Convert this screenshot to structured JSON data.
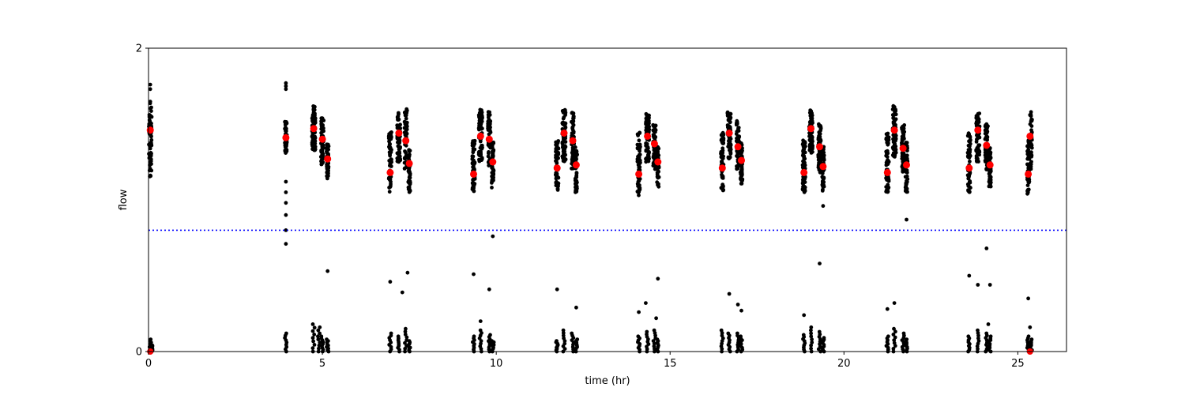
{
  "chart_data": {
    "type": "scatter",
    "xlabel": "time (hr)",
    "ylabel": "flow",
    "xlim": [
      0,
      26.4
    ],
    "ylim": [
      0,
      2
    ],
    "xticks": [
      0,
      5,
      10,
      15,
      20,
      25
    ],
    "yticks": [
      0,
      2
    ],
    "grid": false,
    "threshold_line": {
      "y": 0.8,
      "color": "#0000ff",
      "style": "dotted"
    },
    "colors": {
      "raw": "#000000",
      "mean": "#ff0000",
      "threshold": "#0000ff"
    },
    "mean_points": {
      "x": [
        0.05,
        3.95,
        4.75,
        5.0,
        5.15,
        6.95,
        7.2,
        7.4,
        7.5,
        9.35,
        9.55,
        9.8,
        9.9,
        11.75,
        11.95,
        12.2,
        12.3,
        14.1,
        14.35,
        14.55,
        14.65,
        16.5,
        16.7,
        16.95,
        17.05,
        18.85,
        19.05,
        19.3,
        19.4,
        21.25,
        21.45,
        21.7,
        21.8,
        23.6,
        23.85,
        24.1,
        24.2,
        25.3,
        25.35
      ],
      "y": [
        1.46,
        1.41,
        1.47,
        1.4,
        1.27,
        1.18,
        1.44,
        1.39,
        1.24,
        1.17,
        1.42,
        1.4,
        1.25,
        1.21,
        1.44,
        1.39,
        1.23,
        1.17,
        1.42,
        1.37,
        1.25,
        1.21,
        1.44,
        1.35,
        1.26,
        1.18,
        1.47,
        1.35,
        1.22,
        1.18,
        1.46,
        1.34,
        1.23,
        1.21,
        1.46,
        1.36,
        1.23,
        1.17,
        1.42
      ]
    },
    "raw_clusters": [
      {
        "x": 0.05,
        "lo": 1.15,
        "hi": 1.65,
        "width": 0.08,
        "n": 70
      },
      {
        "x": 3.95,
        "lo": 1.3,
        "hi": 1.52,
        "width": 0.06,
        "n": 40
      },
      {
        "x": 4.75,
        "lo": 1.32,
        "hi": 1.62,
        "width": 0.1,
        "n": 70
      },
      {
        "x": 5.0,
        "lo": 1.23,
        "hi": 1.55,
        "width": 0.08,
        "n": 60
      },
      {
        "x": 5.15,
        "lo": 1.14,
        "hi": 1.38,
        "width": 0.06,
        "n": 50
      },
      {
        "x": 6.95,
        "lo": 1.05,
        "hi": 1.45,
        "width": 0.08,
        "n": 60
      },
      {
        "x": 7.2,
        "lo": 1.25,
        "hi": 1.58,
        "width": 0.1,
        "n": 70
      },
      {
        "x": 7.4,
        "lo": 1.2,
        "hi": 1.6,
        "width": 0.08,
        "n": 60
      },
      {
        "x": 7.5,
        "lo": 1.05,
        "hi": 1.35,
        "width": 0.06,
        "n": 50
      },
      {
        "x": 9.35,
        "lo": 1.05,
        "hi": 1.4,
        "width": 0.08,
        "n": 60
      },
      {
        "x": 9.55,
        "lo": 1.25,
        "hi": 1.6,
        "width": 0.1,
        "n": 70
      },
      {
        "x": 9.8,
        "lo": 1.22,
        "hi": 1.58,
        "width": 0.08,
        "n": 60
      },
      {
        "x": 9.9,
        "lo": 1.08,
        "hi": 1.38,
        "width": 0.06,
        "n": 50
      },
      {
        "x": 11.75,
        "lo": 1.05,
        "hi": 1.4,
        "width": 0.08,
        "n": 60
      },
      {
        "x": 11.95,
        "lo": 1.25,
        "hi": 1.6,
        "width": 0.1,
        "n": 70
      },
      {
        "x": 12.2,
        "lo": 1.2,
        "hi": 1.58,
        "width": 0.08,
        "n": 60
      },
      {
        "x": 12.3,
        "lo": 1.05,
        "hi": 1.35,
        "width": 0.06,
        "n": 50
      },
      {
        "x": 14.1,
        "lo": 1.03,
        "hi": 1.45,
        "width": 0.08,
        "n": 60
      },
      {
        "x": 14.35,
        "lo": 1.25,
        "hi": 1.57,
        "width": 0.1,
        "n": 70
      },
      {
        "x": 14.55,
        "lo": 1.2,
        "hi": 1.5,
        "width": 0.08,
        "n": 60
      },
      {
        "x": 14.65,
        "lo": 1.08,
        "hi": 1.35,
        "width": 0.06,
        "n": 50
      },
      {
        "x": 16.5,
        "lo": 1.05,
        "hi": 1.45,
        "width": 0.08,
        "n": 60
      },
      {
        "x": 16.7,
        "lo": 1.27,
        "hi": 1.58,
        "width": 0.1,
        "n": 70
      },
      {
        "x": 16.95,
        "lo": 1.2,
        "hi": 1.52,
        "width": 0.08,
        "n": 60
      },
      {
        "x": 17.05,
        "lo": 1.08,
        "hi": 1.38,
        "width": 0.06,
        "n": 50
      },
      {
        "x": 18.85,
        "lo": 1.05,
        "hi": 1.4,
        "width": 0.08,
        "n": 60
      },
      {
        "x": 19.05,
        "lo": 1.3,
        "hi": 1.6,
        "width": 0.1,
        "n": 70
      },
      {
        "x": 19.3,
        "lo": 1.18,
        "hi": 1.5,
        "width": 0.08,
        "n": 60
      },
      {
        "x": 19.4,
        "lo": 1.06,
        "hi": 1.35,
        "width": 0.06,
        "n": 50
      },
      {
        "x": 21.25,
        "lo": 1.03,
        "hi": 1.45,
        "width": 0.08,
        "n": 60
      },
      {
        "x": 21.45,
        "lo": 1.28,
        "hi": 1.62,
        "width": 0.1,
        "n": 70
      },
      {
        "x": 21.7,
        "lo": 1.18,
        "hi": 1.5,
        "width": 0.08,
        "n": 60
      },
      {
        "x": 21.8,
        "lo": 1.05,
        "hi": 1.38,
        "width": 0.06,
        "n": 50
      },
      {
        "x": 23.6,
        "lo": 1.05,
        "hi": 1.45,
        "width": 0.08,
        "n": 60
      },
      {
        "x": 23.85,
        "lo": 1.25,
        "hi": 1.57,
        "width": 0.1,
        "n": 70
      },
      {
        "x": 24.1,
        "lo": 1.2,
        "hi": 1.5,
        "width": 0.08,
        "n": 60
      },
      {
        "x": 24.2,
        "lo": 1.08,
        "hi": 1.35,
        "width": 0.06,
        "n": 50
      },
      {
        "x": 25.3,
        "lo": 1.03,
        "hi": 1.4,
        "width": 0.06,
        "n": 50
      },
      {
        "x": 25.38,
        "lo": 1.2,
        "hi": 1.58,
        "width": 0.06,
        "n": 40
      }
    ],
    "raw_outliers": {
      "x": [
        0.05,
        0.05,
        3.95,
        3.95,
        3.95,
        3.95,
        3.95,
        3.95,
        3.95,
        3.95,
        3.95,
        5.15,
        6.95,
        7.3,
        7.45,
        9.35,
        9.55,
        9.8,
        9.9,
        11.75,
        12.3,
        14.1,
        14.3,
        14.6,
        14.65,
        16.7,
        16.95,
        17.05,
        18.85,
        19.3,
        19.4,
        21.25,
        21.45,
        21.8,
        23.6,
        23.85,
        24.1,
        24.15,
        24.2,
        25.3,
        25.35
      ],
      "y": [
        1.76,
        1.73,
        1.77,
        1.75,
        1.73,
        1.12,
        1.05,
        0.98,
        0.9,
        0.8,
        0.71,
        0.53,
        0.46,
        0.39,
        0.52,
        0.51,
        0.2,
        0.41,
        0.76,
        0.41,
        0.29,
        0.26,
        0.32,
        0.22,
        0.48,
        0.38,
        0.31,
        0.27,
        0.24,
        0.58,
        0.96,
        0.28,
        0.32,
        0.87,
        0.5,
        0.44,
        0.68,
        0.18,
        0.44,
        0.35,
        0.16
      ]
    },
    "low_points": {
      "x": [
        0.05,
        0.1,
        3.95,
        4.75,
        4.9,
        5.0,
        5.15,
        6.95,
        7.2,
        7.4,
        7.5,
        9.35,
        9.55,
        9.8,
        9.9,
        11.75,
        11.95,
        12.2,
        12.3,
        14.1,
        14.35,
        14.55,
        14.65,
        16.5,
        16.7,
        16.95,
        17.05,
        18.85,
        19.05,
        19.3,
        19.4,
        21.25,
        21.45,
        21.7,
        21.8,
        23.6,
        23.85,
        24.1,
        24.2,
        25.3,
        25.38
      ],
      "max": [
        0.08,
        0.04,
        0.12,
        0.18,
        0.16,
        0.1,
        0.08,
        0.12,
        0.1,
        0.15,
        0.07,
        0.1,
        0.14,
        0.11,
        0.07,
        0.07,
        0.14,
        0.12,
        0.08,
        0.1,
        0.13,
        0.14,
        0.08,
        0.14,
        0.12,
        0.12,
        0.1,
        0.11,
        0.16,
        0.13,
        0.09,
        0.1,
        0.15,
        0.12,
        0.08,
        0.1,
        0.14,
        0.12,
        0.1,
        0.1,
        0.08
      ]
    }
  }
}
